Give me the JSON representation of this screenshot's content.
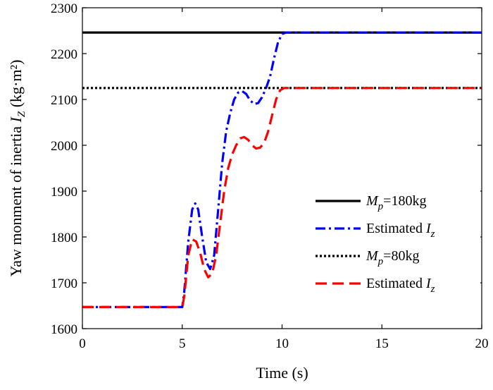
{
  "chart_data": {
    "type": "line",
    "title": "",
    "xlabel": "Time (s)",
    "ylabel": {
      "prefix": "Yaw monment of inertia ",
      "symbol": "I",
      "subscript": "Z",
      "suffix": " (kg·m²)"
    },
    "xlim": [
      0,
      20
    ],
    "ylim": [
      1600,
      2300
    ],
    "xticks": [
      "0",
      "5",
      "10",
      "15",
      "20"
    ],
    "yticks": [
      "1600",
      "1700",
      "1800",
      "1900",
      "2000",
      "2100",
      "2200",
      "2300"
    ],
    "grid": false,
    "legend_position": "lower-right",
    "series": [
      {
        "key": "mp180",
        "legend": {
          "symbol": "M",
          "subscript": "p",
          "text": "=180kg"
        },
        "color": "#000000",
        "dash": "solid",
        "x": [
          0,
          20
        ],
        "y": [
          2246,
          2246
        ]
      },
      {
        "key": "est180",
        "legend": {
          "text": "Estimated ",
          "symbol": "I",
          "subscript": "z"
        },
        "color": "#0000ff",
        "dash": "dashdot",
        "x": [
          0,
          5,
          5.1,
          5.3,
          5.5,
          5.65,
          5.8,
          6.0,
          6.2,
          6.4,
          6.6,
          6.8,
          7.0,
          7.2,
          7.4,
          7.6,
          7.8,
          8.0,
          8.2,
          8.4,
          8.6,
          8.8,
          9.0,
          9.2,
          9.4,
          9.6,
          9.8,
          10.0,
          10.2,
          20
        ],
        "y": [
          1647,
          1647,
          1680,
          1790,
          1860,
          1873,
          1860,
          1800,
          1745,
          1730,
          1760,
          1860,
          1960,
          2030,
          2070,
          2100,
          2115,
          2118,
          2112,
          2098,
          2090,
          2092,
          2105,
          2125,
          2150,
          2190,
          2225,
          2243,
          2246,
          2246
        ]
      },
      {
        "key": "mp80",
        "legend": {
          "symbol": "M",
          "subscript": "p",
          "text": "=80kg"
        },
        "color": "#000000",
        "dash": "dotted",
        "x": [
          0,
          20
        ],
        "y": [
          2125,
          2125
        ]
      },
      {
        "key": "est80",
        "legend": {
          "text": "Estimated ",
          "symbol": "I",
          "subscript": "z"
        },
        "color": "#ff0000",
        "dash": "dashed",
        "x": [
          0,
          5,
          5.1,
          5.3,
          5.5,
          5.7,
          5.9,
          6.1,
          6.3,
          6.5,
          6.7,
          6.9,
          7.1,
          7.3,
          7.5,
          7.7,
          7.9,
          8.1,
          8.3,
          8.5,
          8.7,
          8.9,
          9.1,
          9.3,
          9.5,
          9.7,
          9.9,
          10.1,
          10.3,
          20
        ],
        "y": [
          1647,
          1647,
          1670,
          1760,
          1795,
          1790,
          1765,
          1730,
          1712,
          1720,
          1760,
          1830,
          1900,
          1950,
          1980,
          2000,
          2015,
          2018,
          2012,
          2000,
          1993,
          1995,
          2005,
          2030,
          2065,
          2100,
          2120,
          2125,
          2125,
          2125
        ]
      }
    ]
  }
}
